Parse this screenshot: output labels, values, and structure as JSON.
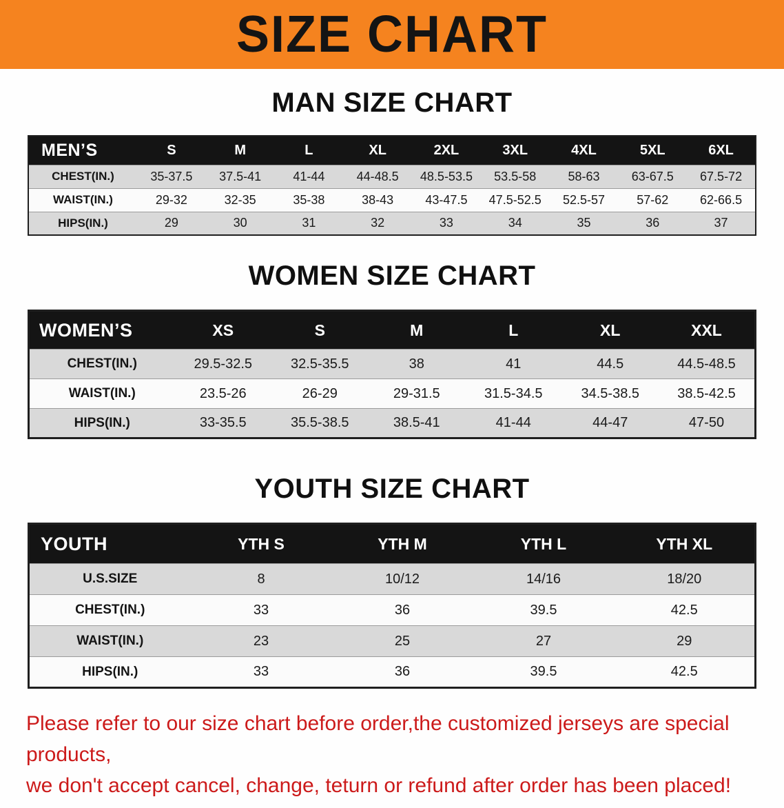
{
  "banner": {
    "title": "SIZE CHART",
    "bg_color": "#f5831f",
    "text_color": "#141414"
  },
  "sections": [
    {
      "heading": "MAN SIZE CHART",
      "table": {
        "header": [
          "MEN’S",
          "S",
          "M",
          "L",
          "XL",
          "2XL",
          "3XL",
          "4XL",
          "5XL",
          "6XL"
        ],
        "rows": [
          [
            "CHEST(IN.)",
            "35-37.5",
            "37.5-41",
            "41-44",
            "44-48.5",
            "48.5-53.5",
            "53.5-58",
            "58-63",
            "63-67.5",
            "67.5-72"
          ],
          [
            "WAIST(IN.)",
            "29-32",
            "32-35",
            "35-38",
            "38-43",
            "43-47.5",
            "47.5-52.5",
            "52.5-57",
            "57-62",
            "62-66.5"
          ],
          [
            "HIPS(IN.)",
            "29",
            "30",
            "31",
            "32",
            "33",
            "34",
            "35",
            "36",
            "37"
          ]
        ]
      }
    },
    {
      "heading": "WOMEN SIZE CHART",
      "table": {
        "header": [
          "WOMEN’S",
          "XS",
          "S",
          "M",
          "L",
          "XL",
          "XXL"
        ],
        "rows": [
          [
            "CHEST(IN.)",
            "29.5-32.5",
            "32.5-35.5",
            "38",
            "41",
            "44.5",
            "44.5-48.5"
          ],
          [
            "WAIST(IN.)",
            "23.5-26",
            "26-29",
            "29-31.5",
            "31.5-34.5",
            "34.5-38.5",
            "38.5-42.5"
          ],
          [
            "HIPS(IN.)",
            "33-35.5",
            "35.5-38.5",
            "38.5-41",
            "41-44",
            "44-47",
            "47-50"
          ]
        ]
      }
    },
    {
      "heading": "YOUTH SIZE CHART",
      "table": {
        "header": [
          "YOUTH",
          "YTH S",
          "YTH M",
          "YTH L",
          "YTH XL"
        ],
        "rows": [
          [
            "U.S.SIZE",
            "8",
            "10/12",
            "14/16",
            "18/20"
          ],
          [
            "CHEST(IN.)",
            "33",
            "36",
            "39.5",
            "42.5"
          ],
          [
            "WAIST(IN.)",
            "23",
            "25",
            "27",
            "29"
          ],
          [
            "HIPS(IN.)",
            "33",
            "36",
            "39.5",
            "42.5"
          ]
        ]
      }
    }
  ],
  "disclaimer": {
    "lines": [
      "Please refer to our size chart before order,the customized jerseys are special products,",
      "we don't accept cancel, change, teturn or refund after order has been placed!"
    ],
    "color": "#cc1a1a"
  }
}
